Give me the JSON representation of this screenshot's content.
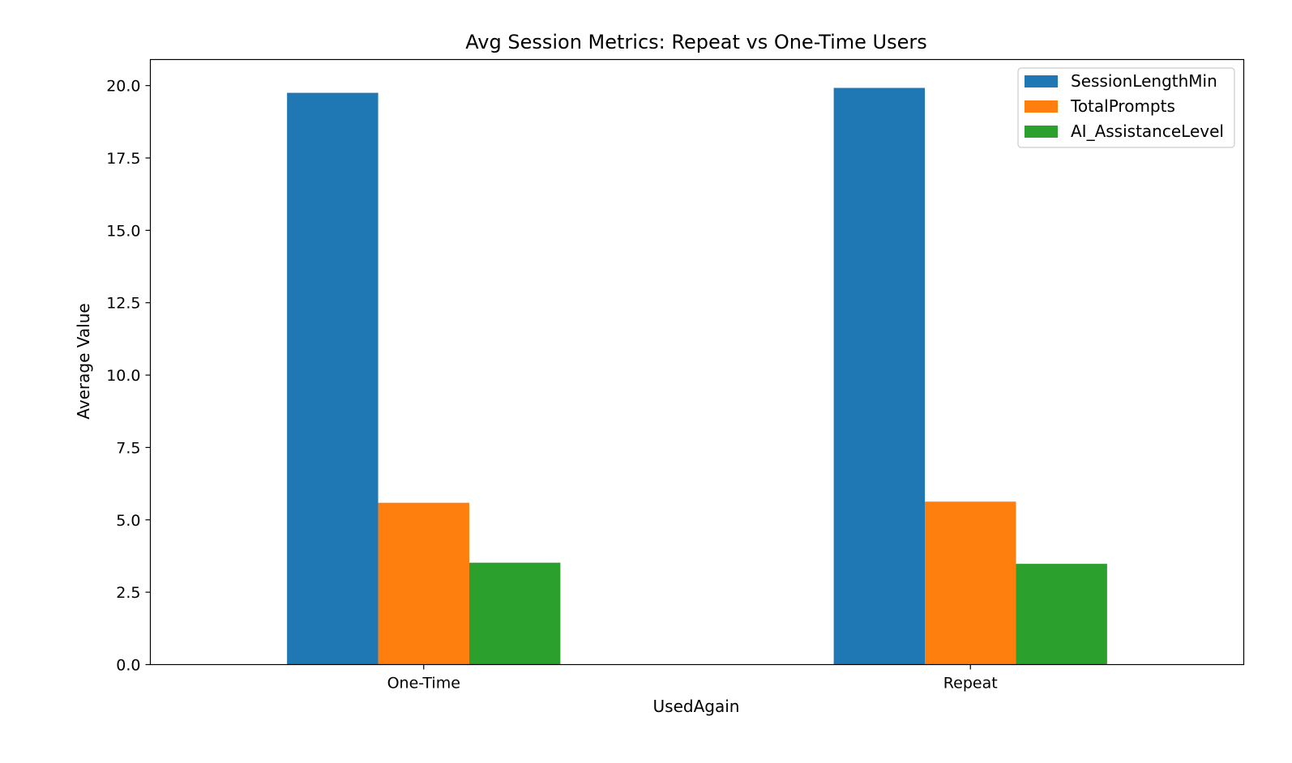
{
  "chart_data": {
    "type": "bar",
    "title": "Avg Session Metrics: Repeat vs One-Time Users",
    "xlabel": "UsedAgain",
    "ylabel": "Average Value",
    "categories": [
      "One-Time",
      "Repeat"
    ],
    "series": [
      {
        "name": "SessionLengthMin",
        "color": "#1f77b4",
        "values": [
          19.75,
          19.92
        ]
      },
      {
        "name": "TotalPrompts",
        "color": "#ff7f0e",
        "values": [
          5.59,
          5.63
        ]
      },
      {
        "name": "AI_AssistanceLevel",
        "color": "#2ca02c",
        "values": [
          3.52,
          3.48
        ]
      }
    ],
    "ylim": [
      0,
      20.9
    ],
    "yticks": [
      "0.0",
      "2.5",
      "5.0",
      "7.5",
      "10.0",
      "12.5",
      "15.0",
      "17.5",
      "20.0"
    ],
    "grid": false,
    "legend": "top-right"
  }
}
